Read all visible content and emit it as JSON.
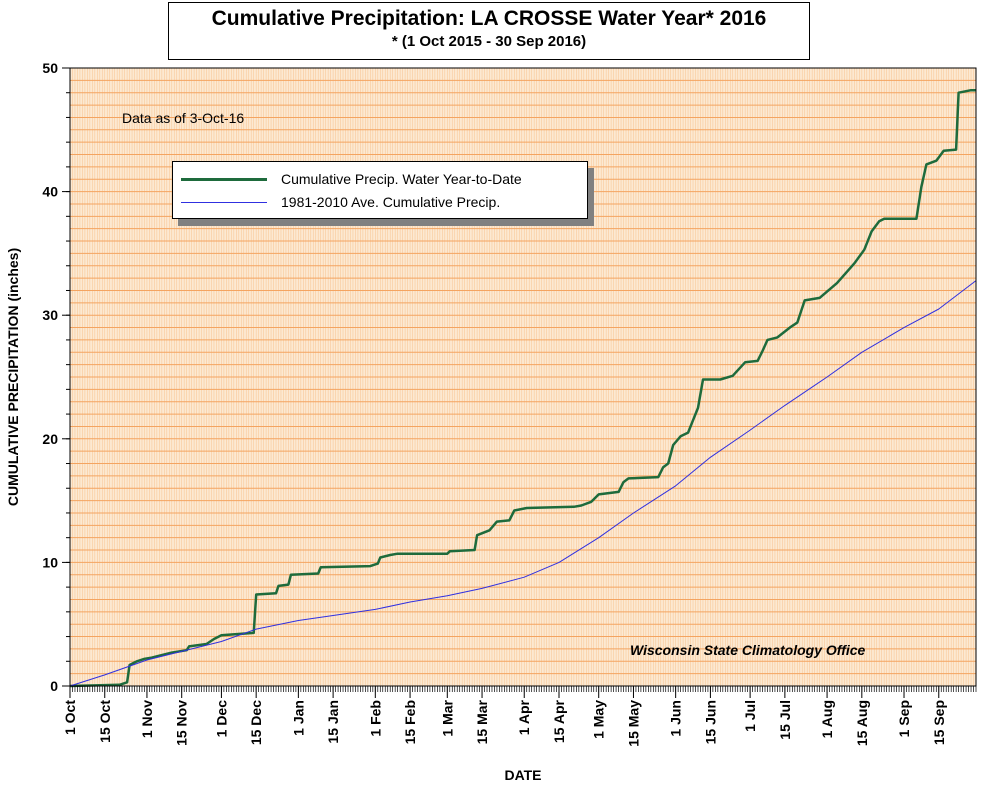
{
  "title": "Cumulative Precipitation: LA CROSSE Water Year* 2016",
  "subtitle": "* (1 Oct 2015 - 30 Sep 2016)",
  "note": "Data as of 3-Oct-16",
  "credit": "Wisconsin State Climatology Office",
  "colors": {
    "plot_bg": "#fce9d2",
    "grid_major": "#f4a460",
    "grid_minor": "#f8c898",
    "observed": "#1e6b3c",
    "normal": "#3030e0"
  },
  "chart_data": {
    "type": "line",
    "title": "Cumulative Precipitation: LA CROSSE Water Year* 2016",
    "subtitle": "* (1 Oct 2015 - 30 Sep 2016)",
    "xlabel": "DATE",
    "ylabel": "CUMULATIVE PRECIPITATION (inches)",
    "ylim": [
      0,
      50
    ],
    "yticks": [
      0,
      10,
      20,
      30,
      40,
      50
    ],
    "xlim": [
      "2015-10-01",
      "2016-09-30"
    ],
    "xticks": [
      {
        "date": "2015-10-01",
        "label": "1 Oct"
      },
      {
        "date": "2015-10-15",
        "label": "15 Oct"
      },
      {
        "date": "2015-11-01",
        "label": "1 Nov"
      },
      {
        "date": "2015-11-15",
        "label": "15 Nov"
      },
      {
        "date": "2015-12-01",
        "label": "1 Dec"
      },
      {
        "date": "2015-12-15",
        "label": "15 Dec"
      },
      {
        "date": "2016-01-01",
        "label": "1 Jan"
      },
      {
        "date": "2016-01-15",
        "label": "15 Jan"
      },
      {
        "date": "2016-02-01",
        "label": "1 Feb"
      },
      {
        "date": "2016-02-15",
        "label": "15 Feb"
      },
      {
        "date": "2016-03-01",
        "label": "1 Mar"
      },
      {
        "date": "2016-03-15",
        "label": "15 Mar"
      },
      {
        "date": "2016-04-01",
        "label": "1 Apr"
      },
      {
        "date": "2016-04-15",
        "label": "15 Apr"
      },
      {
        "date": "2016-05-01",
        "label": "1 May"
      },
      {
        "date": "2016-05-15",
        "label": "15 May"
      },
      {
        "date": "2016-06-01",
        "label": "1 Jun"
      },
      {
        "date": "2016-06-15",
        "label": "15 Jun"
      },
      {
        "date": "2016-07-01",
        "label": "1 Jul"
      },
      {
        "date": "2016-07-15",
        "label": "15 Jul"
      },
      {
        "date": "2016-08-01",
        "label": "1 Aug"
      },
      {
        "date": "2016-08-15",
        "label": "15 Aug"
      },
      {
        "date": "2016-09-01",
        "label": "1 Sep"
      },
      {
        "date": "2016-09-15",
        "label": "15 Sep"
      }
    ],
    "grid": true,
    "legend_position": "upper-left",
    "series": [
      {
        "name": "Cumulative Precip.  Water Year-to-Date",
        "color": "#1e6b3c",
        "points": [
          [
            "2015-10-01",
            0
          ],
          [
            "2015-10-21",
            0.1
          ],
          [
            "2015-10-24",
            0.3
          ],
          [
            "2015-10-25",
            1.7
          ],
          [
            "2015-10-28",
            2.0
          ],
          [
            "2015-10-31",
            2.2
          ],
          [
            "2015-11-03",
            2.3
          ],
          [
            "2015-11-07",
            2.5
          ],
          [
            "2015-11-11",
            2.7
          ],
          [
            "2015-11-17",
            2.9
          ],
          [
            "2015-11-18",
            3.2
          ],
          [
            "2015-11-25",
            3.4
          ],
          [
            "2015-11-28",
            3.8
          ],
          [
            "2015-12-01",
            4.1
          ],
          [
            "2015-12-14",
            4.3
          ],
          [
            "2015-12-15",
            7.4
          ],
          [
            "2015-12-23",
            7.5
          ],
          [
            "2015-12-24",
            8.1
          ],
          [
            "2015-12-28",
            8.2
          ],
          [
            "2015-12-29",
            9.0
          ],
          [
            "2016-01-09",
            9.1
          ],
          [
            "2016-01-10",
            9.6
          ],
          [
            "2016-01-30",
            9.7
          ],
          [
            "2016-02-02",
            9.9
          ],
          [
            "2016-02-03",
            10.4
          ],
          [
            "2016-02-07",
            10.6
          ],
          [
            "2016-02-10",
            10.7
          ],
          [
            "2016-03-01",
            10.7
          ],
          [
            "2016-03-02",
            10.9
          ],
          [
            "2016-03-12",
            11.0
          ],
          [
            "2016-03-13",
            12.2
          ],
          [
            "2016-03-18",
            12.6
          ],
          [
            "2016-03-21",
            13.3
          ],
          [
            "2016-03-26",
            13.4
          ],
          [
            "2016-03-28",
            14.2
          ],
          [
            "2016-04-02",
            14.4
          ],
          [
            "2016-04-21",
            14.5
          ],
          [
            "2016-04-24",
            14.6
          ],
          [
            "2016-04-28",
            14.9
          ],
          [
            "2016-05-01",
            15.5
          ],
          [
            "2016-05-09",
            15.7
          ],
          [
            "2016-05-11",
            16.5
          ],
          [
            "2016-05-13",
            16.8
          ],
          [
            "2016-05-25",
            16.9
          ],
          [
            "2016-05-27",
            17.7
          ],
          [
            "2016-05-29",
            18.0
          ],
          [
            "2016-05-31",
            19.5
          ],
          [
            "2016-06-03",
            20.2
          ],
          [
            "2016-06-06",
            20.5
          ],
          [
            "2016-06-08",
            21.5
          ],
          [
            "2016-06-10",
            22.5
          ],
          [
            "2016-06-12",
            24.8
          ],
          [
            "2016-06-19",
            24.8
          ],
          [
            "2016-06-24",
            25.1
          ],
          [
            "2016-06-29",
            26.2
          ],
          [
            "2016-07-04",
            26.3
          ],
          [
            "2016-07-06",
            27.1
          ],
          [
            "2016-07-08",
            28.0
          ],
          [
            "2016-07-12",
            28.2
          ],
          [
            "2016-07-17",
            29.0
          ],
          [
            "2016-07-20",
            29.4
          ],
          [
            "2016-07-23",
            31.2
          ],
          [
            "2016-07-29",
            31.4
          ],
          [
            "2016-08-05",
            32.6
          ],
          [
            "2016-08-12",
            34.2
          ],
          [
            "2016-08-16",
            35.3
          ],
          [
            "2016-08-19",
            36.8
          ],
          [
            "2016-08-22",
            37.6
          ],
          [
            "2016-08-24",
            37.8
          ],
          [
            "2016-09-06",
            37.8
          ],
          [
            "2016-09-08",
            40.4
          ],
          [
            "2016-09-10",
            42.2
          ],
          [
            "2016-09-14",
            42.5
          ],
          [
            "2016-09-17",
            43.3
          ],
          [
            "2016-09-22",
            43.4
          ],
          [
            "2016-09-23",
            48.0
          ],
          [
            "2016-09-28",
            48.2
          ],
          [
            "2016-09-30",
            48.2
          ]
        ]
      },
      {
        "name": "1981-2010 Ave. Cumulative Precip.",
        "color": "#3030e0",
        "points": [
          [
            "2015-10-01",
            0
          ],
          [
            "2015-10-15",
            0.9
          ],
          [
            "2015-11-01",
            2.1
          ],
          [
            "2015-11-15",
            2.8
          ],
          [
            "2015-12-01",
            3.6
          ],
          [
            "2015-12-15",
            4.6
          ],
          [
            "2016-01-01",
            5.3
          ],
          [
            "2016-01-15",
            5.7
          ],
          [
            "2016-02-01",
            6.2
          ],
          [
            "2016-02-15",
            6.8
          ],
          [
            "2016-03-01",
            7.3
          ],
          [
            "2016-03-15",
            7.9
          ],
          [
            "2016-04-01",
            8.8
          ],
          [
            "2016-04-15",
            10.0
          ],
          [
            "2016-05-01",
            12.0
          ],
          [
            "2016-05-15",
            14.0
          ],
          [
            "2016-06-01",
            16.2
          ],
          [
            "2016-06-15",
            18.5
          ],
          [
            "2016-07-01",
            20.7
          ],
          [
            "2016-07-15",
            22.7
          ],
          [
            "2016-08-01",
            25.0
          ],
          [
            "2016-08-15",
            27.0
          ],
          [
            "2016-09-01",
            29.0
          ],
          [
            "2016-09-15",
            30.5
          ],
          [
            "2016-09-30",
            32.8
          ]
        ]
      }
    ]
  }
}
